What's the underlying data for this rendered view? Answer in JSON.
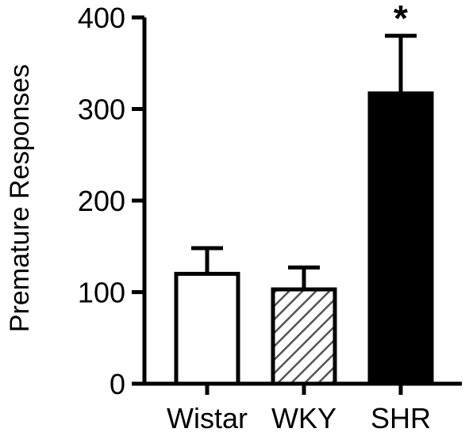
{
  "chart_data": {
    "type": "bar",
    "categories": [
      "Wistar",
      "WKY",
      "SHR"
    ],
    "values": [
      120,
      103,
      317
    ],
    "errors": [
      28,
      24,
      63
    ],
    "fills": [
      "#ffffff",
      "hatch",
      "#000000"
    ],
    "annotations": [
      "",
      "",
      "*"
    ],
    "xlabel": "",
    "ylabel": "Premature Responses",
    "ylim": [
      0,
      400
    ],
    "yticks": [
      0,
      100,
      200,
      300,
      400
    ],
    "grid": false,
    "colors": {
      "axis": "#000000",
      "hatch_bg": "#ffffff",
      "hatch_line": "#555555"
    }
  }
}
